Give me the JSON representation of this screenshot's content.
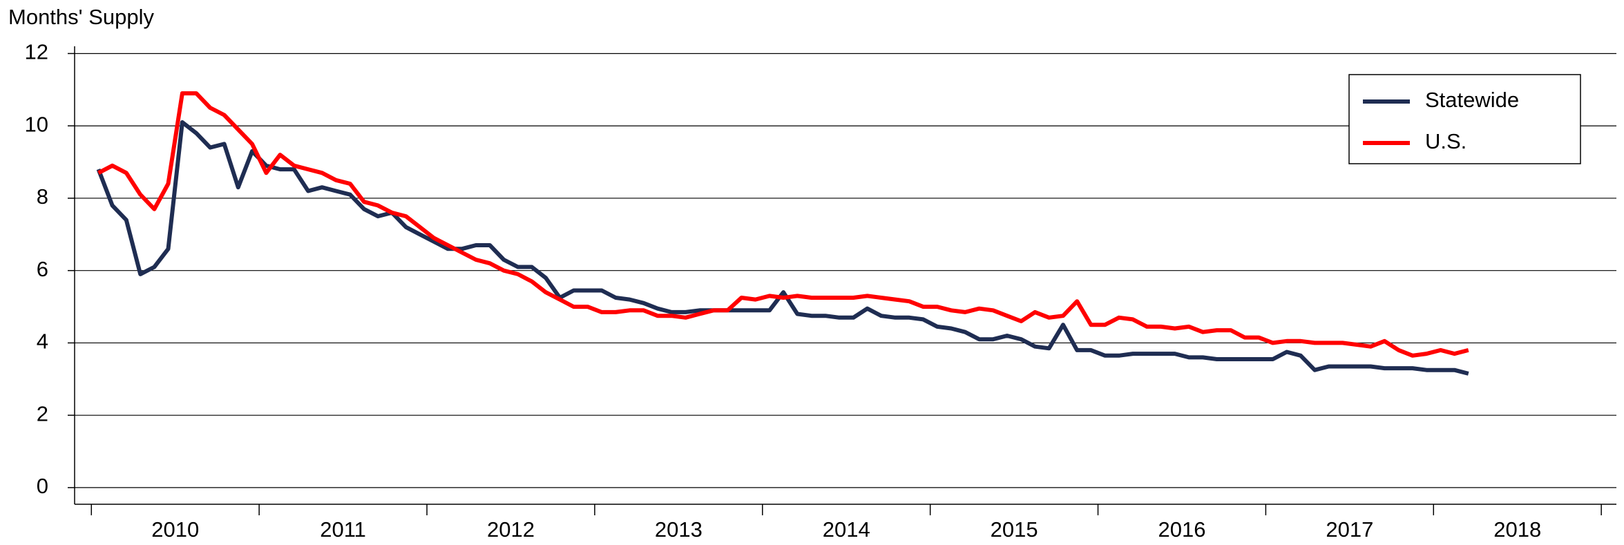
{
  "chart_data": {
    "type": "line",
    "y_label": "Months' Supply",
    "x": [
      2010.042,
      2010.125,
      2010.208,
      2010.292,
      2010.375,
      2010.458,
      2010.542,
      2010.625,
      2010.708,
      2010.792,
      2010.875,
      2010.958,
      2011.042,
      2011.125,
      2011.208,
      2011.292,
      2011.375,
      2011.458,
      2011.542,
      2011.625,
      2011.708,
      2011.792,
      2011.875,
      2011.958,
      2012.042,
      2012.125,
      2012.208,
      2012.292,
      2012.375,
      2012.458,
      2012.542,
      2012.625,
      2012.708,
      2012.792,
      2012.875,
      2012.958,
      2013.042,
      2013.125,
      2013.208,
      2013.292,
      2013.375,
      2013.458,
      2013.542,
      2013.625,
      2013.708,
      2013.792,
      2013.875,
      2013.958,
      2014.042,
      2014.125,
      2014.208,
      2014.292,
      2014.375,
      2014.458,
      2014.542,
      2014.625,
      2014.708,
      2014.792,
      2014.875,
      2014.958,
      2015.042,
      2015.125,
      2015.208,
      2015.292,
      2015.375,
      2015.458,
      2015.542,
      2015.625,
      2015.708,
      2015.792,
      2015.875,
      2015.958,
      2016.042,
      2016.125,
      2016.208,
      2016.292,
      2016.375,
      2016.458,
      2016.542,
      2016.625,
      2016.708,
      2016.792,
      2016.875,
      2016.958,
      2017.042,
      2017.125,
      2017.208,
      2017.292,
      2017.375,
      2017.458,
      2017.542,
      2017.625,
      2017.708,
      2017.792,
      2017.875,
      2017.958,
      2018.042,
      2018.125,
      2018.208
    ],
    "series": [
      {
        "name": "Statewide",
        "color": "#1f2d52",
        "values": [
          8.8,
          7.8,
          7.4,
          5.9,
          6.1,
          6.6,
          10.1,
          9.8,
          9.4,
          9.5,
          8.3,
          9.3,
          8.9,
          8.8,
          8.8,
          8.2,
          8.3,
          8.2,
          8.1,
          7.7,
          7.5,
          7.6,
          7.2,
          7.0,
          6.8,
          6.6,
          6.6,
          6.7,
          6.7,
          6.3,
          6.1,
          6.1,
          5.8,
          5.25,
          5.45,
          5.45,
          5.45,
          5.25,
          5.2,
          5.1,
          4.95,
          4.85,
          4.85,
          4.9,
          4.9,
          4.9,
          4.9,
          4.9,
          4.9,
          5.4,
          4.8,
          4.75,
          4.75,
          4.7,
          4.7,
          4.95,
          4.75,
          4.7,
          4.7,
          4.65,
          4.45,
          4.4,
          4.3,
          4.1,
          4.1,
          4.2,
          4.1,
          3.9,
          3.85,
          4.5,
          3.8,
          3.8,
          3.65,
          3.65,
          3.7,
          3.7,
          3.7,
          3.7,
          3.6,
          3.6,
          3.55,
          3.55,
          3.55,
          3.55,
          3.55,
          3.75,
          3.65,
          3.25,
          3.35,
          3.35,
          3.35,
          3.35,
          3.3,
          3.3,
          3.3,
          3.25,
          3.25,
          3.25,
          3.15
        ]
      },
      {
        "name": "U.S.",
        "color": "#ff0000",
        "values": [
          8.7,
          8.9,
          8.7,
          8.1,
          7.7,
          8.4,
          10.9,
          10.9,
          10.5,
          10.3,
          9.9,
          9.5,
          8.7,
          9.2,
          8.9,
          8.8,
          8.7,
          8.5,
          8.4,
          7.9,
          7.8,
          7.6,
          7.5,
          7.2,
          6.9,
          6.7,
          6.5,
          6.3,
          6.2,
          6.0,
          5.9,
          5.7,
          5.4,
          5.2,
          5.0,
          5.0,
          4.85,
          4.85,
          4.9,
          4.9,
          4.75,
          4.75,
          4.7,
          4.8,
          4.9,
          4.9,
          5.25,
          5.2,
          5.3,
          5.25,
          5.3,
          5.25,
          5.25,
          5.25,
          5.25,
          5.3,
          5.25,
          5.2,
          5.15,
          5.0,
          5.0,
          4.9,
          4.85,
          4.95,
          4.9,
          4.75,
          4.6,
          4.85,
          4.7,
          4.75,
          5.15,
          4.5,
          4.5,
          4.7,
          4.65,
          4.45,
          4.45,
          4.4,
          4.45,
          4.3,
          4.35,
          4.35,
          4.15,
          4.15,
          4.0,
          4.05,
          4.05,
          4.0,
          4.0,
          4.0,
          3.95,
          3.9,
          4.05,
          3.8,
          3.65,
          3.7,
          3.8,
          3.7,
          3.8
        ]
      }
    ],
    "xlim": [
      2009.9,
      2019.09
    ],
    "xticks": [
      {
        "value": 2010.5,
        "label": "2010"
      },
      {
        "value": 2011.5,
        "label": "2011"
      },
      {
        "value": 2012.5,
        "label": "2012"
      },
      {
        "value": 2013.5,
        "label": "2013"
      },
      {
        "value": 2014.5,
        "label": "2014"
      },
      {
        "value": 2015.5,
        "label": "2015"
      },
      {
        "value": 2016.5,
        "label": "2016"
      },
      {
        "value": 2017.5,
        "label": "2017"
      },
      {
        "value": 2018.5,
        "label": "2018"
      }
    ],
    "x_tick_marks": [
      2010,
      2011,
      2012,
      2013,
      2014,
      2015,
      2016,
      2017,
      2018,
      2019
    ],
    "ylim": [
      -0.46,
      12.2
    ],
    "yticks": [
      0,
      2,
      4,
      6,
      8,
      10,
      12
    ],
    "grid": true,
    "legend": "upper right"
  }
}
